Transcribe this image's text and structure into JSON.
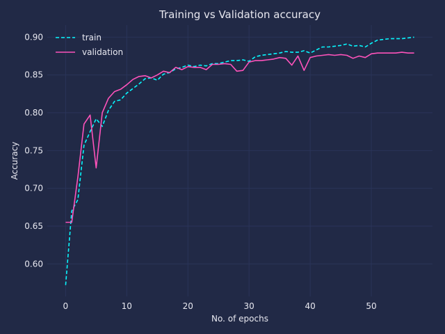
{
  "chart_data": {
    "type": "line",
    "title": "Training vs Validation accuracy",
    "xlabel": "No. of epochs",
    "ylabel": "Accuracy",
    "xlim": [
      -3,
      60
    ],
    "ylim": [
      0.557,
      0.916
    ],
    "xticks": [
      0,
      10,
      20,
      30,
      40,
      50
    ],
    "yticks": [
      0.6,
      0.65,
      0.7,
      0.75,
      0.8,
      0.85,
      0.9
    ],
    "grid": true,
    "legend_position": "top-left",
    "colors": {
      "background": "#212946",
      "grid": "#2A3459",
      "text": "#E8E8F0",
      "train": "#08F7FE",
      "validation": "#FE53BB"
    },
    "x": [
      0,
      1,
      2,
      3,
      4,
      5,
      6,
      7,
      8,
      9,
      10,
      11,
      12,
      13,
      14,
      15,
      16,
      17,
      18,
      19,
      20,
      21,
      22,
      23,
      24,
      25,
      26,
      27,
      28,
      29,
      30,
      31,
      32,
      33,
      34,
      35,
      36,
      37,
      38,
      39,
      40,
      41,
      42,
      43,
      44,
      45,
      46,
      47,
      48,
      49,
      50,
      51,
      52,
      53,
      54,
      55,
      56,
      57
    ],
    "series": [
      {
        "name": "train",
        "style": "dashed",
        "values": [
          0.572,
          0.67,
          0.685,
          0.757,
          0.775,
          0.792,
          0.782,
          0.803,
          0.815,
          0.817,
          0.826,
          0.832,
          0.838,
          0.845,
          0.846,
          0.843,
          0.851,
          0.853,
          0.858,
          0.86,
          0.863,
          0.861,
          0.863,
          0.862,
          0.865,
          0.865,
          0.867,
          0.869,
          0.869,
          0.87,
          0.868,
          0.874,
          0.876,
          0.877,
          0.878,
          0.879,
          0.881,
          0.88,
          0.88,
          0.882,
          0.879,
          0.883,
          0.887,
          0.887,
          0.888,
          0.889,
          0.891,
          0.888,
          0.889,
          0.887,
          0.892,
          0.896,
          0.897,
          0.898,
          0.898,
          0.898,
          0.899,
          0.9
        ]
      },
      {
        "name": "validation",
        "style": "solid",
        "values": [
          0.655,
          0.655,
          0.715,
          0.785,
          0.797,
          0.727,
          0.8,
          0.819,
          0.828,
          0.831,
          0.837,
          0.844,
          0.848,
          0.849,
          0.846,
          0.85,
          0.855,
          0.853,
          0.86,
          0.857,
          0.861,
          0.86,
          0.86,
          0.857,
          0.864,
          0.864,
          0.865,
          0.864,
          0.855,
          0.856,
          0.867,
          0.869,
          0.869,
          0.87,
          0.871,
          0.873,
          0.872,
          0.863,
          0.875,
          0.856,
          0.873,
          0.875,
          0.876,
          0.877,
          0.876,
          0.877,
          0.876,
          0.872,
          0.875,
          0.873,
          0.878,
          0.879,
          0.879,
          0.879,
          0.879,
          0.88,
          0.879,
          0.879
        ]
      }
    ]
  }
}
